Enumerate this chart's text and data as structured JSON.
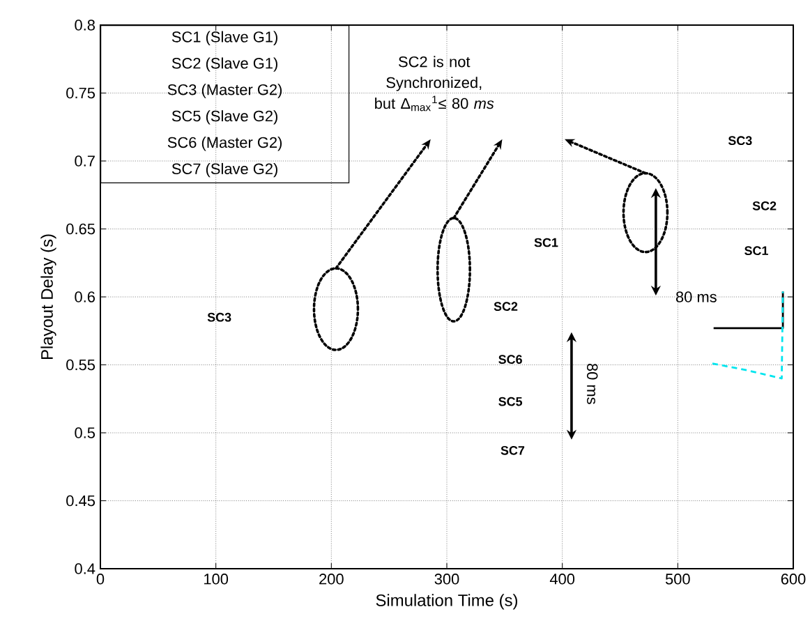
{
  "chart_data": {
    "type": "line",
    "xlabel": "Simulation Time (s)",
    "ylabel": "Playout Delay (s)",
    "xlim": [
      0,
      600
    ],
    "ylim": [
      0.4,
      0.8
    ],
    "xticks": [
      0,
      100,
      200,
      300,
      400,
      500,
      600
    ],
    "yticks": [
      0.4,
      0.45,
      0.5,
      0.55,
      0.6,
      0.65,
      0.7,
      0.75,
      0.8
    ],
    "grid": true,
    "marker": "none",
    "series": [
      {
        "color": "#000000",
        "line_style": "solid",
        "x": [
          531,
          591,
          591
        ],
        "values": [
          0.577,
          0.577,
          0.604
        ]
      },
      {
        "color": "#00e5ee",
        "line_style": "dashed",
        "x": [
          530,
          560,
          590,
          591
        ],
        "values": [
          0.551,
          0.546,
          0.54,
          0.604
        ]
      }
    ],
    "annotations": [
      "SC1 (Slave G1)",
      "SC2 (Slave G1)",
      "SC3 (Master G2)",
      "SC5 (Slave G2)",
      "SC6 (Master G2)",
      "SC7 (Slave G2)",
      "SC2 is not Synchronized, but Δ$_{max}$$^{1}$≤ 80 *ms*",
      "SC3",
      "SC1",
      "SC2",
      "SC6",
      "SC5",
      "SC7",
      "SC3",
      "SC2",
      "SC1",
      "80 ms",
      "80 ms"
    ]
  }
}
